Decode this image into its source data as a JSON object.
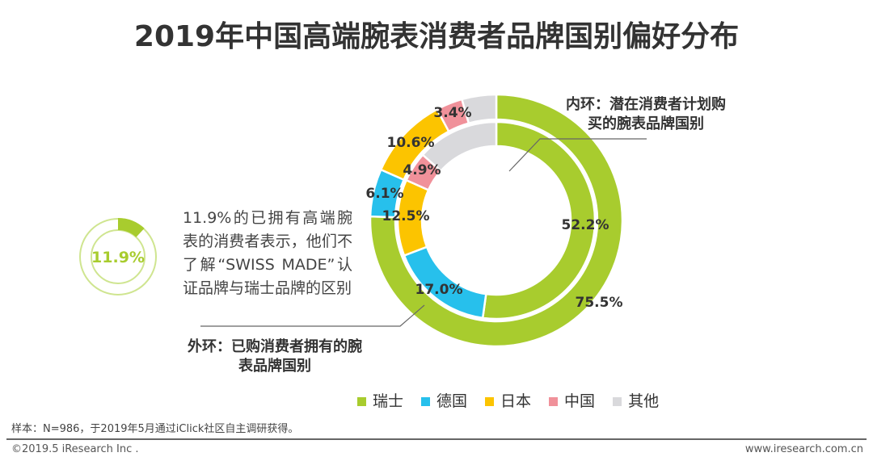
{
  "title": "2019年中国高端腕表消费者品牌国别偏好分布",
  "chart_data": {
    "type": "donut",
    "categories": [
      "瑞士",
      "德国",
      "日本",
      "中国",
      "其他"
    ],
    "colors": [
      "#a8cc2e",
      "#27c0ec",
      "#fcc400",
      "#f0919a",
      "#d9d9dc"
    ],
    "series": [
      {
        "name": "外环：已购消费者拥有的腕表品牌国别",
        "ring": "outer",
        "values": [
          75.5,
          6.1,
          10.6,
          3.4,
          4.4
        ],
        "labels": [
          "75.5%",
          "6.1%",
          "10.6%",
          "3.4%",
          ""
        ]
      },
      {
        "name": "内环：潜在消费者计划购买的腕表品牌国别",
        "ring": "inner",
        "values": [
          52.2,
          17.0,
          12.5,
          4.9,
          13.4
        ],
        "labels": [
          "52.2%",
          "17.0%",
          "12.5%",
          "4.9%",
          ""
        ]
      }
    ],
    "legend_position": "bottom"
  },
  "mini_gauge": {
    "value": 11.9,
    "label": "11.9%",
    "color": "#a8cc2e",
    "track_color": "#cfe590"
  },
  "note": "11.9%的已拥有高端腕表的消费者表示，他们不了解“SWISS MADE”认证品牌与瑞士品牌的区别",
  "inner_annotation": [
    "内环：潜在消费者计划购",
    "买的腕表品牌国别"
  ],
  "outer_annotation": [
    "外环：已购消费者拥有的腕",
    "表品牌国别"
  ],
  "footnote": "样本：N=986，于2019年5月通过iClick社区自主调研获得。",
  "copyright": "©2019.5 iResearch Inc .",
  "website": "www.iresearch.com.cn"
}
